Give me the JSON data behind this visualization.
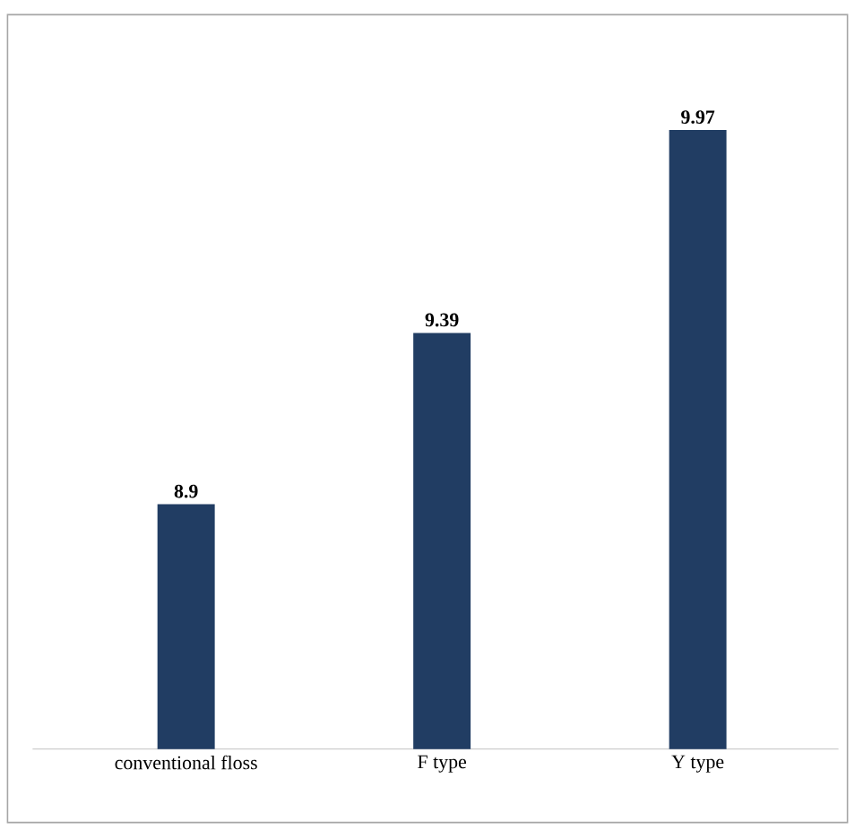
{
  "chart_data": {
    "type": "bar",
    "categories": [
      "conventional floss",
      "F type",
      "Y type"
    ],
    "values": [
      8.9,
      9.39,
      9.97
    ],
    "color": "#213d63",
    "ylim": [
      8.2,
      10.3
    ],
    "data_labels": true
  }
}
